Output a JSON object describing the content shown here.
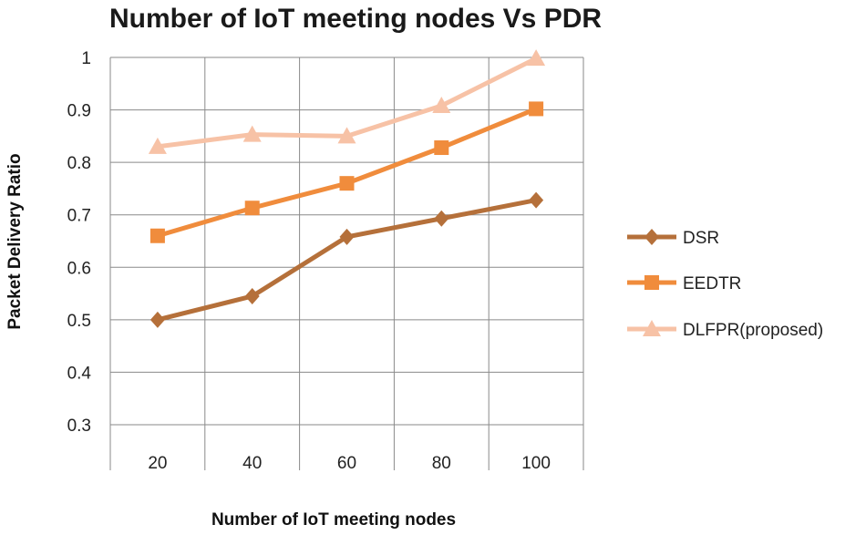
{
  "chart_data": {
    "type": "line",
    "title": "Number of IoT meeting nodes Vs PDR",
    "xlabel": "Number  of IoT meeting nodes",
    "ylabel": "Packet  Delivery Ratio",
    "categories": [
      "20",
      "40",
      "60",
      "80",
      "100"
    ],
    "ylim": [
      0.3,
      1.0
    ],
    "yticks": [
      "0.3",
      "0.4",
      "0.5",
      "0.6",
      "0.7",
      "0.8",
      "0.9",
      "1"
    ],
    "grid": true,
    "legend_position": "right",
    "series": [
      {
        "name": "DSR",
        "values": [
          0.5,
          0.545,
          0.658,
          0.693,
          0.728
        ],
        "color": "#b5703a",
        "marker": "diamond"
      },
      {
        "name": "EEDTR",
        "values": [
          0.66,
          0.713,
          0.76,
          0.828,
          0.902
        ],
        "color": "#f08c3c",
        "marker": "square"
      },
      {
        "name": "DLFPR(proposed)",
        "values": [
          0.83,
          0.853,
          0.85,
          0.908,
          0.998
        ],
        "color": "#f7c2a6",
        "marker": "triangle"
      }
    ]
  }
}
